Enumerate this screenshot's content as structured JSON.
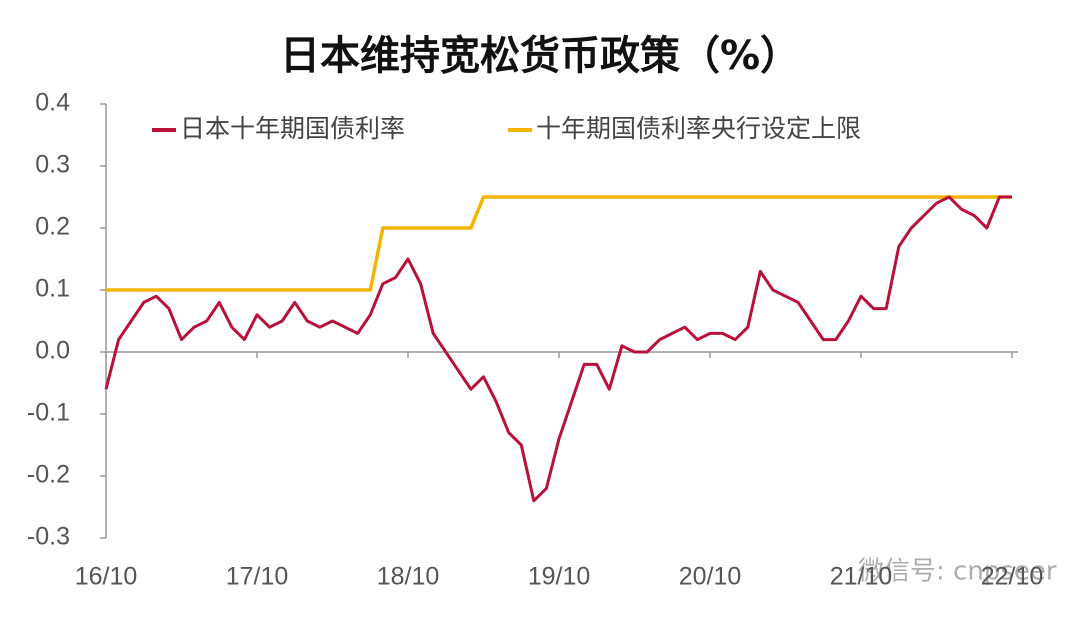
{
  "chart_data": {
    "type": "line",
    "title": "日本维持宽松货币政策（%）",
    "categories": [
      "16/10",
      null,
      null,
      null,
      null,
      null,
      null,
      null,
      null,
      null,
      null,
      null,
      "17/10",
      null,
      null,
      null,
      null,
      null,
      null,
      null,
      null,
      null,
      null,
      null,
      "18/10",
      null,
      null,
      null,
      null,
      null,
      null,
      null,
      null,
      null,
      null,
      null,
      "19/10",
      null,
      null,
      null,
      null,
      null,
      null,
      null,
      null,
      null,
      null,
      null,
      "20/10",
      null,
      null,
      null,
      null,
      null,
      null,
      null,
      null,
      null,
      null,
      null,
      "21/10",
      null,
      null,
      null,
      null,
      null,
      null,
      null,
      null,
      null,
      null,
      null,
      "22/10"
    ],
    "series": [
      {
        "name": "日本十年期国债利率",
        "color": "#b8123b",
        "values": [
          -0.06,
          0.02,
          0.05,
          0.08,
          0.09,
          0.07,
          0.02,
          0.04,
          0.05,
          0.08,
          0.04,
          0.02,
          0.06,
          0.04,
          0.05,
          0.08,
          0.05,
          0.04,
          0.05,
          0.04,
          0.03,
          0.06,
          0.11,
          0.12,
          0.15,
          0.11,
          0.03,
          0.0,
          -0.03,
          -0.06,
          -0.04,
          -0.08,
          -0.13,
          -0.15,
          -0.24,
          -0.22,
          -0.14,
          -0.08,
          -0.02,
          -0.02,
          -0.06,
          0.01,
          0.0,
          0.0,
          0.02,
          0.03,
          0.04,
          0.02,
          0.03,
          0.03,
          0.02,
          0.04,
          0.13,
          0.1,
          0.09,
          0.08,
          0.05,
          0.02,
          0.02,
          0.05,
          0.09,
          0.07,
          0.07,
          0.17,
          0.2,
          0.22,
          0.24,
          0.25,
          0.23,
          0.22,
          0.2,
          0.25,
          0.25
        ]
      },
      {
        "name": "十年期国债利率央行设定上限",
        "color": "#f5b400",
        "values": [
          0.1,
          0.1,
          0.1,
          0.1,
          0.1,
          0.1,
          0.1,
          0.1,
          0.1,
          0.1,
          0.1,
          0.1,
          0.1,
          0.1,
          0.1,
          0.1,
          0.1,
          0.1,
          0.1,
          0.1,
          0.1,
          0.1,
          0.2,
          0.2,
          0.2,
          0.2,
          0.2,
          0.2,
          0.2,
          0.2,
          0.25,
          0.25,
          0.25,
          0.25,
          0.25,
          0.25,
          0.25,
          0.25,
          0.25,
          0.25,
          0.25,
          0.25,
          0.25,
          0.25,
          0.25,
          0.25,
          0.25,
          0.25,
          0.25,
          0.25,
          0.25,
          0.25,
          0.25,
          0.25,
          0.25,
          0.25,
          0.25,
          0.25,
          0.25,
          0.25,
          0.25,
          0.25,
          0.25,
          0.25,
          0.25,
          0.25,
          0.25,
          0.25,
          0.25,
          0.25,
          0.25,
          0.25,
          0.25
        ]
      }
    ],
    "ylim": [
      -0.3,
      0.4
    ],
    "yticks": [
      0.4,
      0.3,
      0.2,
      0.1,
      {
        "value": 0,
        "label": "0.0"
      },
      -0.1,
      -0.2,
      -0.3
    ],
    "watermark": "微信号: cnpseer"
  }
}
